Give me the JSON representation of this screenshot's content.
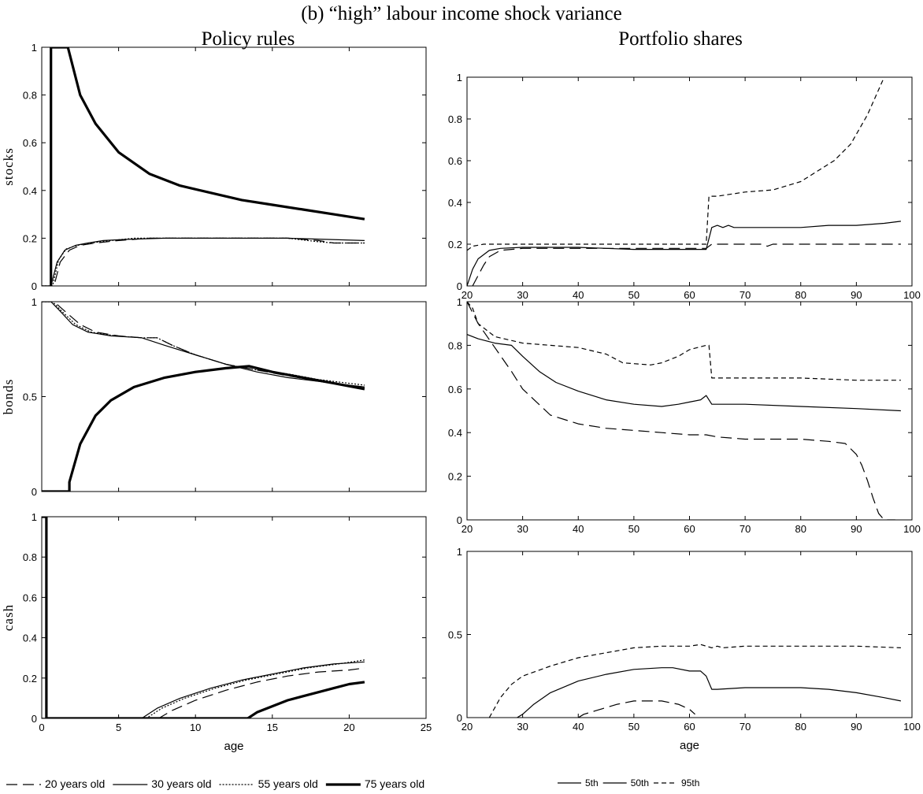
{
  "header": {
    "title": "(b) “high” labour income shock variance",
    "left_heading": "Policy rules",
    "right_heading": "Portfolio shares"
  },
  "chart_data": [
    {
      "id": "policy-stocks",
      "type": "line",
      "ylabel": "stocks",
      "xlim": [
        0,
        25
      ],
      "ylim": [
        0,
        1
      ],
      "xticks": [
        0,
        5,
        10,
        15,
        20,
        25
      ],
      "xticklabels": [
        "",
        "",
        "",
        "",
        "",
        ""
      ],
      "yticks": [
        0,
        0.2,
        0.4,
        0.6,
        0.8,
        1
      ],
      "yticklabels": [
        "0",
        "0.2",
        "0.4",
        "0.6",
        "0.8",
        "1"
      ],
      "series": [
        {
          "name": "20 years old",
          "style": "long-dash",
          "x": [
            0,
            0.8,
            1.2,
            1.8,
            2.5,
            3.5,
            5,
            7,
            10,
            13,
            16,
            18,
            19,
            21
          ],
          "y": [
            0,
            0,
            0.1,
            0.15,
            0.17,
            0.18,
            0.19,
            0.2,
            0.2,
            0.2,
            0.2,
            0.19,
            0.18,
            0.18
          ]
        },
        {
          "name": "30 years old",
          "style": "thin",
          "x": [
            0,
            0.6,
            1,
            1.5,
            2.2,
            3,
            4,
            5.5,
            8,
            12,
            16,
            21
          ],
          "y": [
            0,
            0,
            0.1,
            0.15,
            0.17,
            0.18,
            0.19,
            0.195,
            0.2,
            0.2,
            0.2,
            0.19
          ]
        },
        {
          "name": "55 years old",
          "style": "dotted",
          "x": [
            0,
            0.7,
            1.1,
            1.6,
            2.3,
            3.2,
            4.5,
            6,
            9,
            12,
            16,
            18,
            19,
            21
          ],
          "y": [
            0,
            0,
            0.11,
            0.155,
            0.17,
            0.18,
            0.19,
            0.2,
            0.2,
            0.2,
            0.2,
            0.185,
            0.18,
            0.18
          ]
        },
        {
          "name": "75 years old",
          "style": "thick",
          "x": [
            0.6,
            0.6,
            1.7,
            2.5,
            3.5,
            5,
            7,
            9,
            11,
            13,
            15,
            17,
            19,
            21
          ],
          "y": [
            0,
            1,
            1,
            0.8,
            0.68,
            0.56,
            0.47,
            0.42,
            0.39,
            0.36,
            0.34,
            0.32,
            0.3,
            0.28
          ]
        }
      ]
    },
    {
      "id": "policy-bonds",
      "type": "line",
      "ylabel": "bonds",
      "xlim": [
        0,
        25
      ],
      "ylim": [
        0,
        1
      ],
      "xticks": [
        0,
        5,
        10,
        15,
        20,
        25
      ],
      "xticklabels": [
        "",
        "",
        "",
        "",
        "",
        ""
      ],
      "yticks": [
        0,
        0.5,
        1
      ],
      "yticklabels": [
        "0",
        "0.5",
        "1"
      ],
      "series": [
        {
          "name": "20 years old",
          "style": "long-dash",
          "x": [
            0,
            0.8,
            1.5,
            2.5,
            3.5,
            5,
            6.5,
            7.5,
            8.5,
            10,
            12,
            14,
            16,
            18,
            21
          ],
          "y": [
            1,
            1,
            0.95,
            0.88,
            0.84,
            0.82,
            0.81,
            0.81,
            0.77,
            0.72,
            0.67,
            0.64,
            0.61,
            0.58,
            0.55
          ]
        },
        {
          "name": "30 years old",
          "style": "thin",
          "x": [
            0,
            0.6,
            1.2,
            2,
            3,
            4.5,
            6.5,
            8,
            10,
            12,
            14,
            16,
            18,
            21
          ],
          "y": [
            1,
            1,
            0.95,
            0.88,
            0.84,
            0.82,
            0.81,
            0.77,
            0.72,
            0.67,
            0.63,
            0.6,
            0.58,
            0.55
          ]
        },
        {
          "name": "55 years old",
          "style": "dotted",
          "x": [
            0,
            0.7,
            1.3,
            2.2,
            3.2,
            4.8,
            6.5,
            7.5,
            8.5,
            10,
            12,
            14,
            16,
            18,
            21
          ],
          "y": [
            1,
            1,
            0.95,
            0.88,
            0.84,
            0.82,
            0.81,
            0.81,
            0.77,
            0.72,
            0.67,
            0.64,
            0.62,
            0.59,
            0.56
          ]
        },
        {
          "name": "75 years old",
          "style": "thick",
          "x": [
            0,
            1.8,
            1.8,
            2.5,
            3.5,
            4.5,
            6,
            8,
            10,
            12,
            13.5,
            15,
            17,
            19,
            21
          ],
          "y": [
            0,
            0,
            0.05,
            0.25,
            0.4,
            0.48,
            0.55,
            0.6,
            0.63,
            0.65,
            0.66,
            0.63,
            0.6,
            0.57,
            0.54
          ]
        }
      ]
    },
    {
      "id": "policy-cash",
      "type": "line",
      "ylabel": "cash",
      "xlabel": "age",
      "xlim": [
        0,
        25
      ],
      "ylim": [
        0,
        1
      ],
      "xticks": [
        0,
        5,
        10,
        15,
        20,
        25
      ],
      "xticklabels": [
        "0",
        "5",
        "10",
        "15",
        "20",
        "25"
      ],
      "yticks": [
        0,
        0.2,
        0.4,
        0.6,
        0.8,
        1
      ],
      "yticklabels": [
        "0",
        "0.2",
        "0.4",
        "0.6",
        "0.8",
        "1"
      ],
      "series": [
        {
          "name": "20 years old",
          "style": "long-dash",
          "x": [
            0,
            7.6,
            8.5,
            10,
            12,
            14,
            16,
            18,
            20,
            21
          ],
          "y": [
            0,
            0,
            0.04,
            0.09,
            0.14,
            0.18,
            0.21,
            0.23,
            0.24,
            0.25
          ]
        },
        {
          "name": "30 years old",
          "style": "thin",
          "x": [
            0,
            6.5,
            7.5,
            9,
            11,
            13,
            15,
            17,
            19,
            21
          ],
          "y": [
            0,
            0,
            0.05,
            0.1,
            0.15,
            0.19,
            0.22,
            0.25,
            0.27,
            0.28
          ]
        },
        {
          "name": "55 years old",
          "style": "dotted",
          "x": [
            0,
            6.8,
            7.8,
            9.3,
            11.3,
            13.3,
            15.3,
            17.3,
            19.3,
            21
          ],
          "y": [
            0,
            0,
            0.05,
            0.1,
            0.15,
            0.19,
            0.22,
            0.25,
            0.27,
            0.29
          ]
        },
        {
          "name": "75 years old",
          "style": "thick",
          "x": [
            0,
            0.3,
            0.3,
            0.6,
            0.6,
            13.4,
            14,
            15,
            16,
            17,
            18,
            19,
            20,
            21
          ],
          "y": [
            1,
            1,
            0,
            0,
            0,
            0,
            0.03,
            0.06,
            0.09,
            0.11,
            0.13,
            0.15,
            0.17,
            0.18
          ]
        }
      ]
    },
    {
      "id": "portfolio-stocks",
      "type": "line",
      "xlim": [
        20,
        100
      ],
      "ylim": [
        0,
        1
      ],
      "xticks": [
        20,
        30,
        40,
        50,
        60,
        70,
        80,
        90,
        100
      ],
      "xticklabels": [
        "20",
        "30",
        "40",
        "50",
        "60",
        "70",
        "80",
        "90",
        "100"
      ],
      "yticks": [
        0,
        0.2,
        0.4,
        0.6,
        0.8,
        1
      ],
      "yticklabels": [
        "0",
        "0.2",
        "0.4",
        "0.6",
        "0.8",
        "1"
      ],
      "series": [
        {
          "name": "5th",
          "style": "long-dash",
          "x": [
            21,
            22,
            23,
            24,
            26,
            28,
            30,
            40,
            50,
            60,
            63,
            64,
            70,
            73,
            74,
            75,
            80,
            90,
            98
          ],
          "y": [
            0,
            0.05,
            0.1,
            0.14,
            0.17,
            0.175,
            0.18,
            0.18,
            0.18,
            0.18,
            0.18,
            0.2,
            0.2,
            0.2,
            0.19,
            0.2,
            0.2,
            0.2,
            0.2
          ]
        },
        {
          "name": "50th",
          "style": "thin",
          "x": [
            20,
            21,
            22,
            24,
            26,
            30,
            40,
            45,
            50,
            55,
            60,
            63,
            64,
            65,
            66,
            67,
            68,
            70,
            80,
            85,
            90,
            95,
            98
          ],
          "y": [
            0,
            0.08,
            0.13,
            0.17,
            0.18,
            0.185,
            0.185,
            0.18,
            0.175,
            0.175,
            0.175,
            0.175,
            0.28,
            0.29,
            0.28,
            0.29,
            0.28,
            0.28,
            0.28,
            0.29,
            0.29,
            0.3,
            0.31
          ]
        },
        {
          "name": "95th",
          "style": "short-dash",
          "x": [
            20,
            21,
            23,
            25,
            30,
            40,
            50,
            60,
            63,
            63.5,
            65,
            70,
            75,
            80,
            83,
            86,
            89,
            92,
            95
          ],
          "y": [
            0.17,
            0.19,
            0.2,
            0.2,
            0.2,
            0.2,
            0.2,
            0.2,
            0.2,
            0.43,
            0.43,
            0.45,
            0.46,
            0.5,
            0.55,
            0.6,
            0.68,
            0.82,
            1
          ]
        }
      ]
    },
    {
      "id": "portfolio-bonds",
      "type": "line",
      "xlim": [
        20,
        100
      ],
      "ylim": [
        0,
        1
      ],
      "xticks": [
        20,
        30,
        40,
        50,
        60,
        70,
        80,
        90,
        100
      ],
      "xticklabels": [
        "20",
        "30",
        "40",
        "50",
        "60",
        "70",
        "80",
        "90",
        "100"
      ],
      "yticks": [
        0,
        0.2,
        0.4,
        0.6,
        0.8,
        1
      ],
      "yticklabels": [
        "0",
        "0.2",
        "0.4",
        "0.6",
        "0.8",
        "1"
      ],
      "series": [
        {
          "name": "5th",
          "style": "long-dash",
          "x": [
            20,
            22,
            25,
            28,
            30,
            35,
            40,
            45,
            50,
            55,
            60,
            63,
            65,
            70,
            80,
            85,
            88,
            90,
            91,
            92,
            93,
            94,
            95,
            96,
            97
          ],
          "y": [
            1,
            0.9,
            0.79,
            0.68,
            0.6,
            0.48,
            0.44,
            0.42,
            0.41,
            0.4,
            0.39,
            0.39,
            0.38,
            0.37,
            0.37,
            0.36,
            0.35,
            0.3,
            0.25,
            0.18,
            0.1,
            0.03,
            0,
            0,
            0
          ]
        },
        {
          "name": "50th",
          "style": "thin",
          "x": [
            20,
            22,
            25,
            28,
            30,
            33,
            36,
            40,
            45,
            50,
            55,
            58,
            60,
            62,
            63,
            64,
            70,
            80,
            90,
            98
          ],
          "y": [
            0.85,
            0.83,
            0.81,
            0.8,
            0.75,
            0.68,
            0.63,
            0.59,
            0.55,
            0.53,
            0.52,
            0.53,
            0.54,
            0.55,
            0.57,
            0.53,
            0.53,
            0.52,
            0.51,
            0.5
          ]
        },
        {
          "name": "95th",
          "style": "short-dash",
          "x": [
            20,
            21,
            22,
            25,
            30,
            35,
            40,
            45,
            48,
            53,
            55,
            58,
            60,
            63,
            63.5,
            64,
            70,
            80,
            90,
            98
          ],
          "y": [
            1,
            0.97,
            0.9,
            0.84,
            0.81,
            0.8,
            0.79,
            0.76,
            0.72,
            0.71,
            0.72,
            0.75,
            0.78,
            0.8,
            0.8,
            0.65,
            0.65,
            0.65,
            0.64,
            0.64
          ]
        }
      ]
    },
    {
      "id": "portfolio-cash",
      "type": "line",
      "xlabel": "age",
      "xlim": [
        20,
        100
      ],
      "ylim": [
        0,
        1
      ],
      "xticks": [
        20,
        30,
        40,
        50,
        60,
        70,
        80,
        90,
        100
      ],
      "xticklabels": [
        "20",
        "30",
        "40",
        "50",
        "60",
        "70",
        "80",
        "90",
        "100"
      ],
      "yticks": [
        0,
        0.5,
        1
      ],
      "yticklabels": [
        "0",
        "0.5",
        "1"
      ],
      "series": [
        {
          "name": "5th",
          "style": "long-dash",
          "x": [
            40,
            41,
            43,
            45,
            47,
            50,
            55,
            58,
            60,
            61
          ],
          "y": [
            0,
            0.02,
            0.04,
            0.06,
            0.08,
            0.1,
            0.1,
            0.08,
            0.05,
            0.02
          ]
        },
        {
          "name": "50th",
          "style": "thin",
          "x": [
            29,
            30,
            32,
            35,
            40,
            45,
            50,
            55,
            57,
            60,
            62,
            63,
            64,
            65,
            70,
            75,
            80,
            85,
            90,
            95,
            98
          ],
          "y": [
            0,
            0.02,
            0.08,
            0.15,
            0.22,
            0.26,
            0.29,
            0.3,
            0.3,
            0.28,
            0.28,
            0.25,
            0.17,
            0.17,
            0.18,
            0.18,
            0.18,
            0.17,
            0.15,
            0.12,
            0.1
          ]
        },
        {
          "name": "95th",
          "style": "short-dash",
          "x": [
            24,
            26,
            28,
            30,
            35,
            40,
            45,
            50,
            55,
            60,
            62,
            64,
            65,
            66,
            70,
            80,
            90,
            98
          ],
          "y": [
            0,
            0.12,
            0.2,
            0.25,
            0.31,
            0.36,
            0.39,
            0.42,
            0.43,
            0.43,
            0.44,
            0.42,
            0.43,
            0.42,
            0.43,
            0.43,
            0.43,
            0.42
          ]
        }
      ]
    }
  ],
  "legends": {
    "left": [
      "20 years old",
      "30 years old",
      "55 years old",
      "75 years old"
    ],
    "right": [
      "5th",
      "50th",
      "95th"
    ]
  }
}
